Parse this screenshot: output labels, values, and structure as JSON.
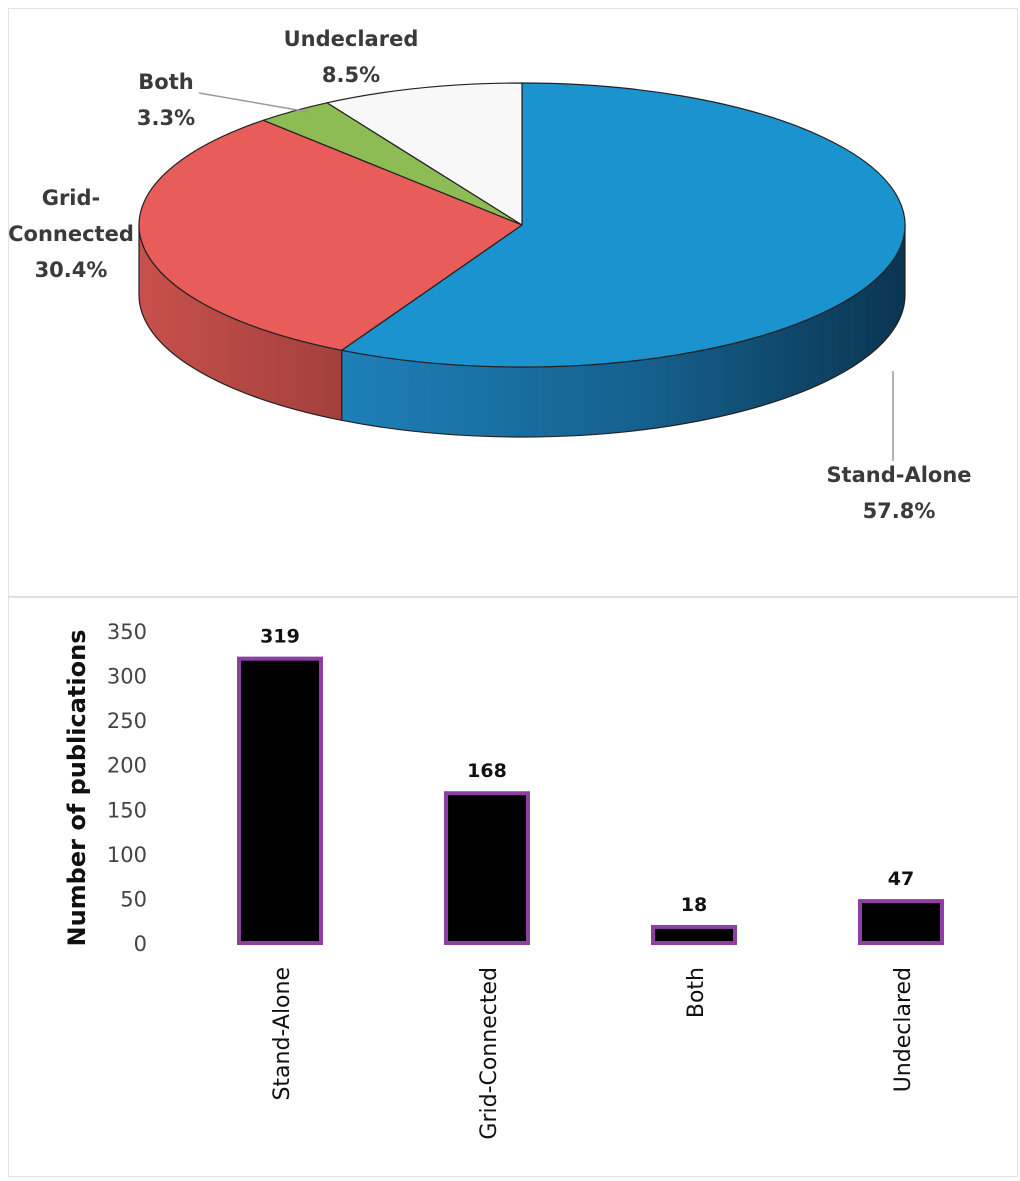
{
  "chart_data": [
    {
      "type": "pie",
      "title": "",
      "slices": [
        {
          "label_lines": [
            "Stand-Alone"
          ],
          "percent_text": "57.8%",
          "value": 57.8,
          "color": "#1a93cf"
        },
        {
          "label_lines": [
            "Grid-",
            "Connected"
          ],
          "percent_text": "30.4%",
          "value": 30.4,
          "color": "#e85c59"
        },
        {
          "label_lines": [
            "Both"
          ],
          "percent_text": "3.3%",
          "value": 3.3,
          "color": "#8dbb54"
        },
        {
          "label_lines": [
            "Undeclared"
          ],
          "percent_text": "8.5%",
          "value": 8.5,
          "color": "#f8f8f8"
        }
      ]
    },
    {
      "type": "bar",
      "title": "",
      "categories": [
        "Stand-Alone",
        "Grid-Connected",
        "Both",
        "Undeclared"
      ],
      "values": [
        319,
        168,
        18,
        47
      ],
      "value_labels": [
        "319",
        "168",
        "18",
        "47"
      ],
      "ylabel": "Number of publications",
      "xlabel": "",
      "ylim": [
        0,
        350
      ],
      "yticks": [
        "350",
        "300",
        "250",
        "200",
        "150",
        "100",
        "50",
        "0"
      ],
      "bar_color": "#000000",
      "bar_edge_color": "#8e3ea5",
      "grid": false
    }
  ]
}
